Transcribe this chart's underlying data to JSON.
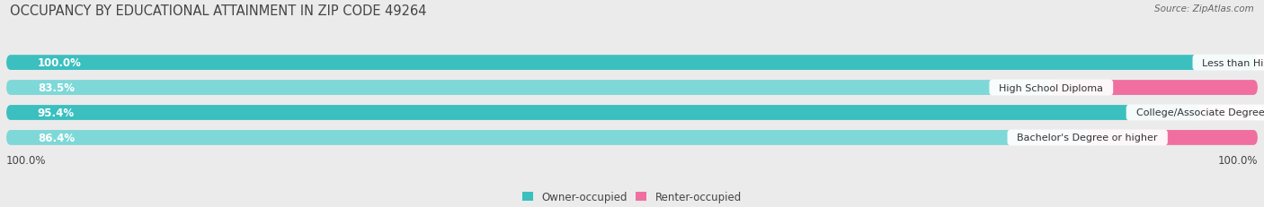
{
  "title": "OCCUPANCY BY EDUCATIONAL ATTAINMENT IN ZIP CODE 49264",
  "source": "Source: ZipAtlas.com",
  "categories": [
    "Less than High School",
    "High School Diploma",
    "College/Associate Degree",
    "Bachelor's Degree or higher"
  ],
  "owner_values": [
    100.0,
    83.5,
    95.4,
    86.4
  ],
  "renter_values": [
    0.0,
    16.5,
    4.6,
    13.6
  ],
  "owner_color": "#3BBFBF",
  "owner_color_light": "#7FD8D8",
  "renter_color": "#F06FA0",
  "renter_color_light": "#F9C0D4",
  "bg_color": "#EBEBEB",
  "bar_bg_color": "#DCDCDC",
  "title_color": "#444444",
  "source_color": "#666666",
  "label_white": "#ffffff",
  "label_dark": "#444444",
  "title_fontsize": 10.5,
  "bar_label_fontsize": 8.5,
  "cat_label_fontsize": 8.0,
  "legend_fontsize": 8.5,
  "source_fontsize": 7.5
}
